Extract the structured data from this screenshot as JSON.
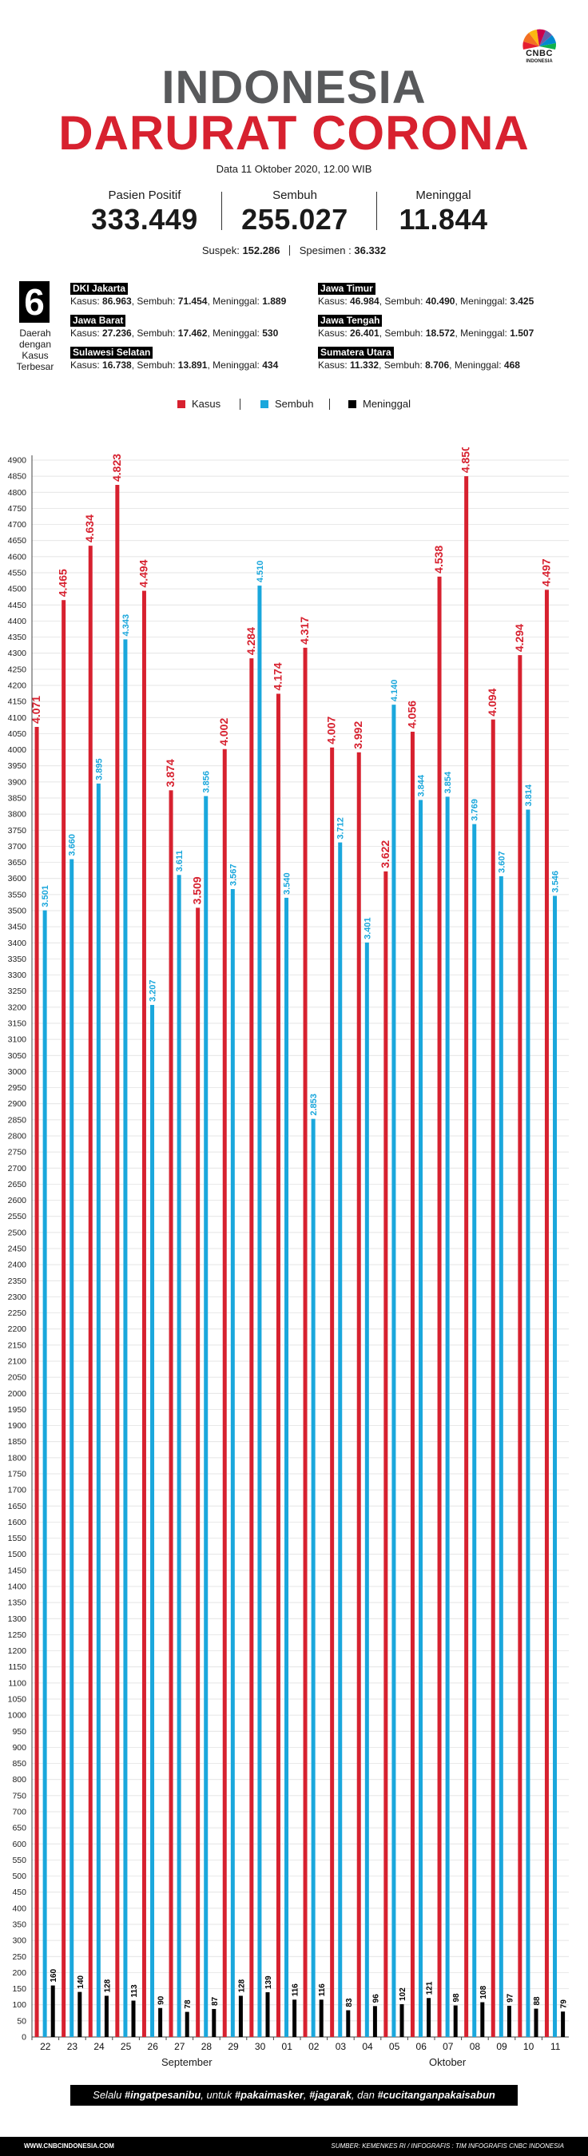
{
  "brand": {
    "logo_text": "CNBC",
    "logo_sub": "INDONESIA"
  },
  "header": {
    "title_line1": "INDONESIA",
    "title_line2": "DARURAT CORONA",
    "date": "Data 11 Oktober 2020, 12.00 WIB"
  },
  "stats": [
    {
      "label": "Pasien Positif",
      "value": "333.449"
    },
    {
      "label": "Sembuh",
      "value": "255.027"
    },
    {
      "label": "Meninggal",
      "value": "11.844"
    }
  ],
  "subline": {
    "suspek_label": "Suspek:",
    "suspek_value": "152.286",
    "spesimen_label": "Spesimen :",
    "spesimen_value": "36.332"
  },
  "provinces_box": {
    "number": "6",
    "label": "Daerah dengan Kasus Terbesar",
    "kasus_label": "Kasus:",
    "sembuh_label": "Sembuh:",
    "meninggal_label": "Meninggal:",
    "items": [
      {
        "name": "DKI Jakarta",
        "kasus": "86.963",
        "sembuh": "71.454",
        "meninggal": "1.889"
      },
      {
        "name": "Jawa Barat",
        "kasus": "27.236",
        "sembuh": "17.462",
        "meninggal": "530"
      },
      {
        "name": "Sulawesi Selatan",
        "kasus": "16.738",
        "sembuh": "13.891",
        "meninggal": "434"
      },
      {
        "name": "Jawa Timur",
        "kasus": "46.984",
        "sembuh": "40.490",
        "meninggal": "3.425"
      },
      {
        "name": "Jawa Tengah",
        "kasus": "26.401",
        "sembuh": "18.572",
        "meninggal": "1.507"
      },
      {
        "name": "Sumatera Utara",
        "kasus": "11.332",
        "sembuh": "8.706",
        "meninggal": "468"
      }
    ]
  },
  "legend": [
    {
      "label": "Kasus",
      "color": "#d7212f"
    },
    {
      "label": "Sembuh",
      "color": "#1aa7dc"
    },
    {
      "label": "Meninggal",
      "color": "#000000"
    }
  ],
  "chart_data": {
    "type": "bar",
    "categories": [
      "22",
      "23",
      "24",
      "25",
      "26",
      "27",
      "28",
      "29",
      "30",
      "01",
      "02",
      "03",
      "04",
      "05",
      "06",
      "07",
      "08",
      "09",
      "10",
      "11"
    ],
    "months": [
      {
        "label": "September"
      },
      {
        "label": "Oktober"
      }
    ],
    "series": [
      {
        "name": "Kasus",
        "color": "#d7212f",
        "values": [
          4071,
          4465,
          4634,
          4823,
          4494,
          3874,
          3509,
          4002,
          4284,
          4174,
          4317,
          4007,
          3992,
          3622,
          4056,
          4538,
          4850,
          4094,
          4294,
          4497
        ],
        "labels": [
          "4.071",
          "4.465",
          "4.634",
          "4.823",
          "4.494",
          "3.874",
          "3.509",
          "4.002",
          "4.284",
          "4.174",
          "4.317",
          "4.007",
          "3.992",
          "3.622",
          "4.056",
          "4.538",
          "4.850",
          "4.094",
          "4.294",
          "4.497"
        ]
      },
      {
        "name": "Sembuh",
        "color": "#1aa7dc",
        "values": [
          3501,
          3660,
          3895,
          4343,
          3207,
          3611,
          3856,
          3567,
          4510,
          3540,
          2853,
          3712,
          3401,
          4140,
          3844,
          3854,
          3769,
          3607,
          3814,
          3546
        ],
        "labels": [
          "3.501",
          "3.660",
          "3.895",
          "4.343",
          "3.207",
          "3.611",
          "3.856",
          "3.567",
          "4.510",
          "3.540",
          "2.853",
          "3.712",
          "3.401",
          "4.140",
          "3.844",
          "3.854",
          "3.769",
          "3.607",
          "3.814",
          "3.546"
        ]
      },
      {
        "name": "Meninggal",
        "color": "#000000",
        "values": [
          160,
          140,
          128,
          113,
          90,
          78,
          87,
          128,
          139,
          116,
          116,
          83,
          96,
          102,
          121,
          98,
          108,
          97,
          88,
          79
        ],
        "labels": [
          "160",
          "140",
          "128",
          "113",
          "90",
          "78",
          "87",
          "128",
          "139",
          "116",
          "116",
          "83",
          "96",
          "102",
          "121",
          "98",
          "108",
          "97",
          "88",
          "79"
        ]
      }
    ],
    "ylim": [
      0,
      4900
    ],
    "ytick_step": 50,
    "grid": true
  },
  "banner": {
    "pre": "Selalu ",
    "t1": "#ingatpesanibu",
    "mid1": ", untuk ",
    "t2": "#pakaimasker",
    "mid2": ", ",
    "t3": "#jagarak",
    "mid3": ", dan ",
    "t4": "#cucitanganpakaisabun"
  },
  "footer": {
    "website": "WWW.CNBCINDONESIA.COM",
    "source": "SUMBER: KEMENKES RI / INFOGRAFIS : TIM INFOGRAFIS CNBC INDONESIA"
  }
}
